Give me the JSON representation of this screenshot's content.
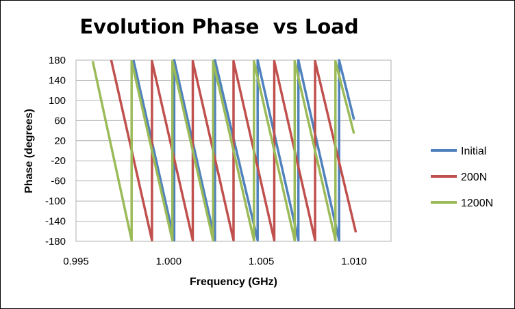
{
  "chart_data": {
    "type": "line",
    "title": "Evolution Phase  vs Load",
    "xlabel": "Frequency (GHz)",
    "ylabel": "Phase (degrees)",
    "xlim": [
      0.995,
      1.012
    ],
    "ylim": [
      -180,
      180
    ],
    "xticks": [
      "0.995",
      "1.000",
      "1.005",
      "1.010"
    ],
    "xtick_values": [
      0.995,
      1.0,
      1.005,
      1.01
    ],
    "yticks": [
      "180",
      "140",
      "100",
      "60",
      "20",
      "-20",
      "-60",
      "-100",
      "-140",
      "-180"
    ],
    "ytick_values": [
      180,
      140,
      100,
      60,
      20,
      -20,
      -60,
      -100,
      -140,
      -180
    ],
    "grid": "horizontal",
    "legend_position": "right",
    "series": [
      {
        "name": "Initial",
        "color": "#4F81BD",
        "points": [
          [
            0.9981,
            180
          ],
          [
            1.0003,
            -178
          ],
          [
            1.0003,
            180
          ],
          [
            1.0025,
            -178
          ],
          [
            1.0025,
            180
          ],
          [
            1.0048,
            -178
          ],
          [
            1.0048,
            180
          ],
          [
            1.007,
            -178
          ],
          [
            1.007,
            180
          ],
          [
            1.0092,
            -178
          ],
          [
            1.0092,
            180
          ],
          [
            1.01,
            62
          ]
        ]
      },
      {
        "name": "200N",
        "color": "#C0504D",
        "points": [
          [
            0.9969,
            180
          ],
          [
            0.9991,
            -178
          ],
          [
            0.9991,
            178
          ],
          [
            1.0013,
            -178
          ],
          [
            1.0013,
            178
          ],
          [
            1.0035,
            -178
          ],
          [
            1.0035,
            178
          ],
          [
            1.0057,
            -178
          ],
          [
            1.0057,
            178
          ],
          [
            1.0079,
            -178
          ],
          [
            1.0079,
            178
          ],
          [
            1.0101,
            -162
          ]
        ]
      },
      {
        "name": "1200N",
        "color": "#9BBB59",
        "points": [
          [
            0.9959,
            178
          ],
          [
            0.998,
            -178
          ],
          [
            0.998,
            178
          ],
          [
            1.0002,
            -178
          ],
          [
            1.0002,
            178
          ],
          [
            1.0024,
            -178
          ],
          [
            1.0024,
            178
          ],
          [
            1.0046,
            -178
          ],
          [
            1.0046,
            178
          ],
          [
            1.0068,
            -178
          ],
          [
            1.0068,
            178
          ],
          [
            1.009,
            -178
          ],
          [
            1.009,
            178
          ],
          [
            1.01,
            34
          ]
        ]
      }
    ]
  }
}
